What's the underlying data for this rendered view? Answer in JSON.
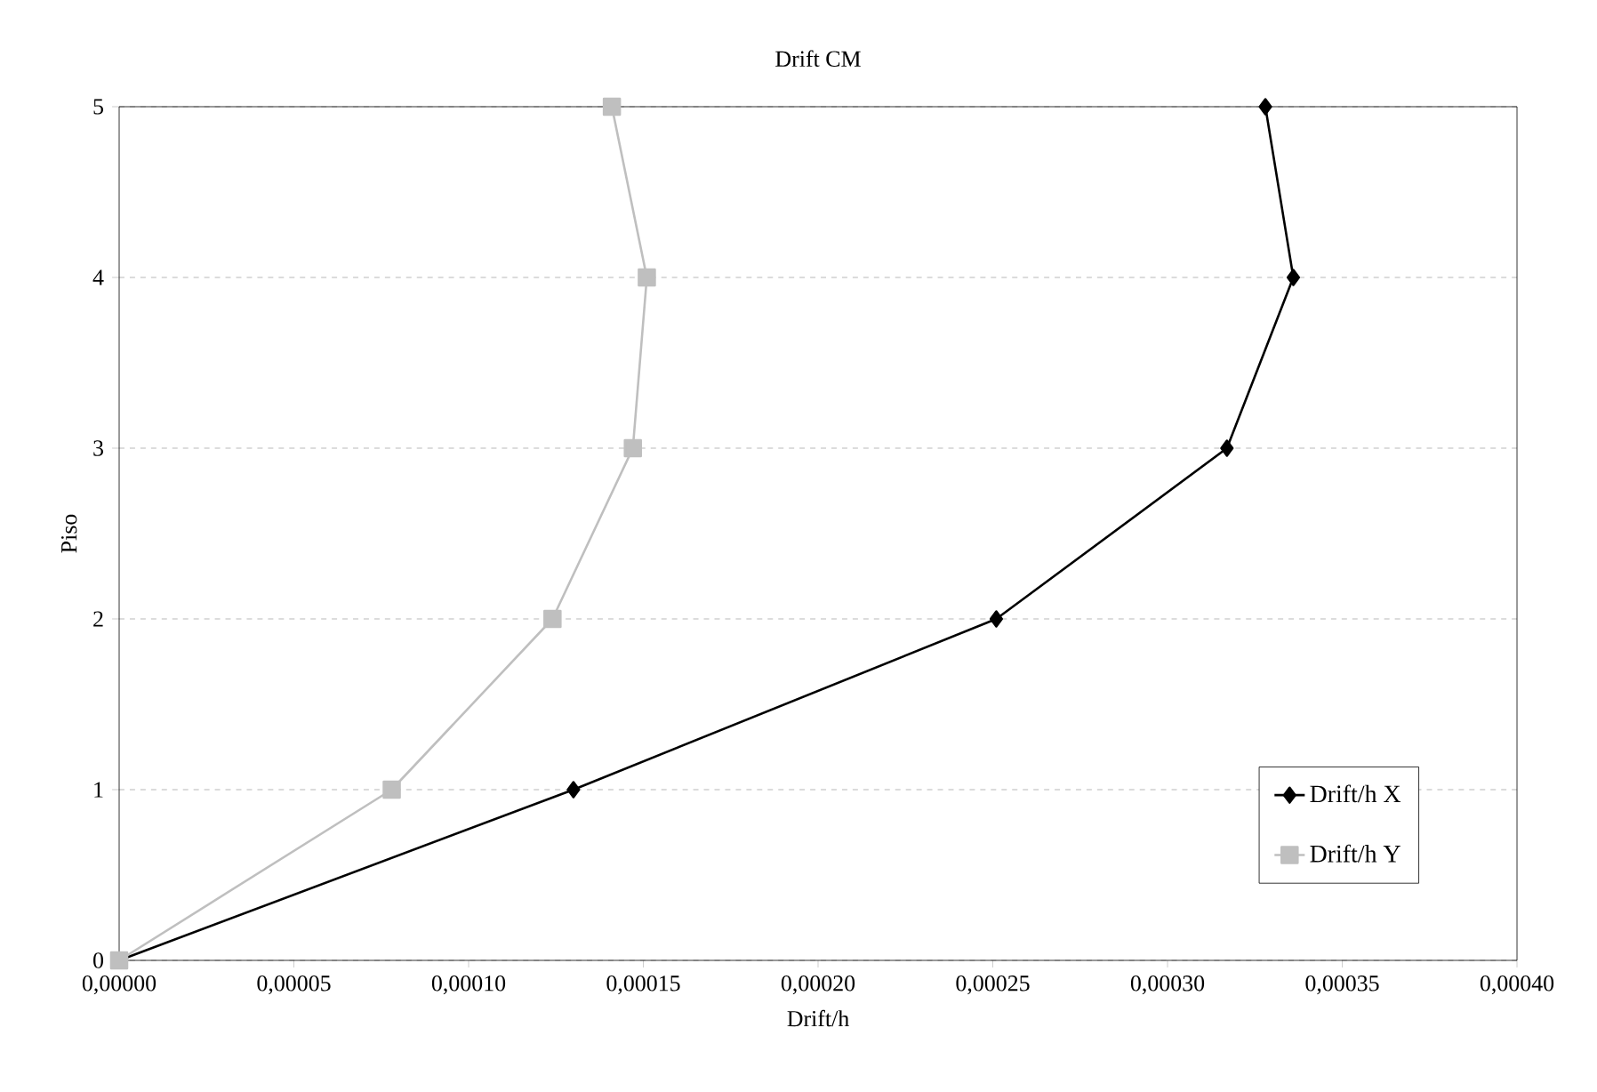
{
  "chart_data": {
    "type": "line",
    "title": "Drift CM",
    "xlabel": "Drift/h",
    "ylabel": "Piso",
    "xlim": [
      0,
      0.0004
    ],
    "xticks": [
      {
        "value": 0,
        "label": "0,00000"
      },
      {
        "value": 5e-05,
        "label": "0,00005"
      },
      {
        "value": 0.0001,
        "label": "0,00010"
      },
      {
        "value": 0.00015,
        "label": "0,00015"
      },
      {
        "value": 0.0002,
        "label": "0,00020"
      },
      {
        "value": 0.00025,
        "label": "0,00025"
      },
      {
        "value": 0.0003,
        "label": "0,00030"
      },
      {
        "value": 0.00035,
        "label": "0,00035"
      },
      {
        "value": 0.0004,
        "label": "0,00040"
      }
    ],
    "ylim": [
      0,
      5
    ],
    "yticks": [
      0,
      1,
      2,
      3,
      4,
      5
    ],
    "grid": "y",
    "legend": "bottom right",
    "line_style": "solid",
    "series": [
      {
        "name": "Drift/h X",
        "color": "#000000",
        "marker": "diamond",
        "x": [
          0,
          0.00013,
          0.000251,
          0.000317,
          0.000336,
          0.000328
        ],
        "values": [
          0,
          1,
          2,
          3,
          4,
          5
        ]
      },
      {
        "name": "Drift/h Y",
        "color": "#bfbfbf",
        "marker": "square",
        "x": [
          0,
          7.8e-05,
          0.000124,
          0.000147,
          0.000151,
          0.000141
        ],
        "values": [
          0,
          1,
          2,
          3,
          4,
          5
        ]
      }
    ]
  }
}
